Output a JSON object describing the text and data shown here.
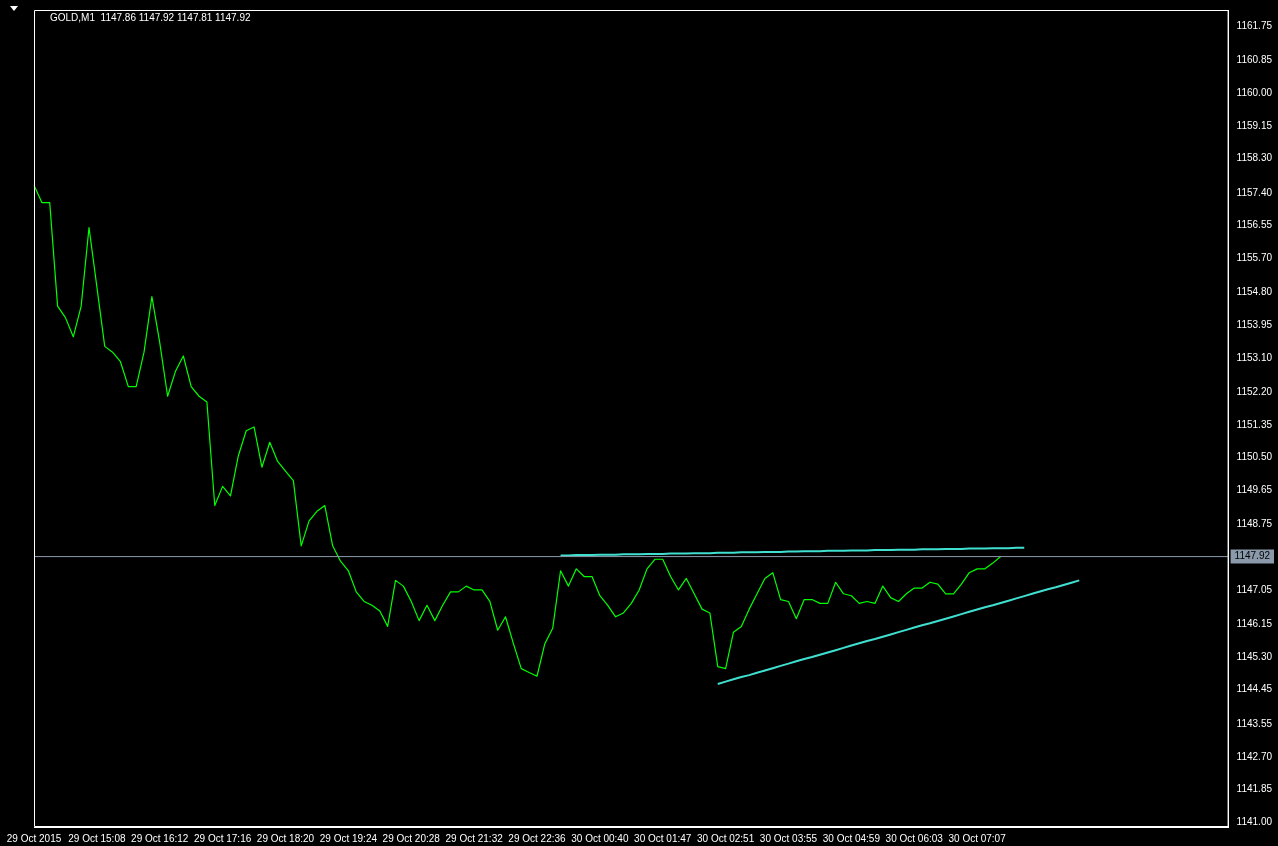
{
  "chart_data": {
    "type": "line",
    "title": "GOLD,M1  1147.86 1147.92 1147.81 1147.92",
    "categories": [
      "29 Oct 2015",
      null,
      null,
      null,
      null,
      null,
      null,
      null,
      "29 Oct 15:08",
      null,
      null,
      null,
      null,
      null,
      null,
      null,
      "29 Oct 16:12",
      null,
      null,
      null,
      null,
      null,
      null,
      null,
      "29 Oct 17:16",
      null,
      null,
      null,
      null,
      null,
      null,
      null,
      "29 Oct 18:20",
      null,
      null,
      null,
      null,
      null,
      null,
      null,
      "29 Oct 19:24",
      null,
      null,
      null,
      null,
      null,
      null,
      null,
      "29 Oct 20:28",
      null,
      null,
      null,
      null,
      null,
      null,
      null,
      "29 Oct 21:32",
      null,
      null,
      null,
      null,
      null,
      null,
      null,
      "29 Oct 22:36",
      null,
      null,
      null,
      null,
      null,
      null,
      null,
      "30 Oct 00:40",
      null,
      null,
      null,
      null,
      null,
      null,
      null,
      "30 Oct 01:47",
      null,
      null,
      null,
      null,
      null,
      null,
      null,
      "30 Oct 02:51",
      null,
      null,
      null,
      null,
      null,
      null,
      null,
      "30 Oct 03:55",
      null,
      null,
      null,
      null,
      null,
      null,
      null,
      "30 Oct 04:59",
      null,
      null,
      null,
      null,
      null,
      null,
      null,
      "30 Oct 06:03",
      null,
      null,
      null,
      null,
      null,
      null,
      null,
      "30 Oct 07:07",
      null,
      null,
      null,
      null,
      null,
      null,
      null,
      null,
      null,
      null,
      null,
      null,
      null,
      null,
      null,
      null,
      null,
      null,
      null,
      null,
      null,
      null,
      null,
      null,
      null,
      null,
      null,
      null,
      null,
      null,
      null,
      null
    ],
    "series": [
      {
        "color": "#00ff00",
        "values": [
          1157.6,
          1157.15,
          1157.15,
          1154.45,
          1154.15,
          1153.65,
          1154.45,
          1156.5,
          1154.95,
          1153.4,
          1153.25,
          1153.0,
          1152.35,
          1152.35,
          1153.25,
          1154.7,
          1153.5,
          1152.1,
          1152.75,
          1153.15,
          1152.35,
          1152.1,
          1151.95,
          1149.25,
          1149.75,
          1149.5,
          1150.55,
          1151.2,
          1151.3,
          1150.25,
          1150.9,
          1150.4,
          1150.15,
          1149.9,
          1148.2,
          1148.85,
          1149.1,
          1149.25,
          1148.2,
          1147.8,
          1147.55,
          1147.0,
          1146.75,
          1146.65,
          1146.5,
          1146.1,
          1147.3,
          1147.15,
          1146.75,
          1146.25,
          1146.65,
          1146.25,
          1146.65,
          1147.0,
          1147.0,
          1147.15,
          1147.05,
          1147.05,
          1146.75,
          1146.0,
          1146.35,
          1145.65,
          1145.0,
          1144.9,
          1144.8,
          1145.65,
          1146.05,
          1147.55,
          1147.15,
          1147.6,
          1147.4,
          1147.4,
          1146.9,
          1146.65,
          1146.35,
          1146.45,
          1146.7,
          1147.05,
          1147.6,
          1147.85,
          1147.85,
          1147.4,
          1147.05,
          1147.35,
          1146.95,
          1146.55,
          1146.45,
          1145.05,
          1145.0,
          1145.95,
          1146.1,
          1146.55,
          1146.95,
          1147.35,
          1147.5,
          1146.8,
          1146.75,
          1146.3,
          1146.8,
          1146.8,
          1146.7,
          1146.7,
          1147.25,
          1146.95,
          1146.9,
          1146.7,
          1146.75,
          1146.7,
          1147.15,
          1146.85,
          1146.75,
          1146.95,
          1147.1,
          1147.1,
          1147.25,
          1147.2,
          1146.95,
          1146.95,
          1147.2,
          1147.5,
          1147.6,
          1147.6,
          1147.75,
          1147.92,
          null,
          null,
          null,
          null,
          null,
          null,
          null,
          null,
          null,
          null,
          null,
          null,
          null,
          null,
          null,
          null,
          null,
          null,
          null,
          null,
          null,
          null,
          null,
          null,
          null,
          null,
          null,
          null,
          null
        ]
      },
      {
        "type": "line",
        "color": "#40e0d0",
        "values": [
          null,
          null,
          null,
          null,
          null,
          null,
          null,
          null,
          null,
          null,
          null,
          null,
          null,
          null,
          null,
          null,
          null,
          null,
          null,
          null,
          null,
          null,
          null,
          null,
          null,
          null,
          null,
          null,
          null,
          null,
          null,
          null,
          null,
          null,
          null,
          null,
          null,
          null,
          null,
          null,
          null,
          null,
          null,
          null,
          null,
          null,
          null,
          null,
          null,
          null,
          null,
          null,
          null,
          null,
          null,
          null,
          null,
          null,
          null,
          null,
          null,
          null,
          null,
          null,
          null,
          null,
          null,
          1147.95,
          1147.95,
          1147.96,
          1147.96,
          1147.96,
          1147.97,
          1147.97,
          1147.97,
          1147.98,
          1147.98,
          1147.98,
          1147.99,
          1147.99,
          1147.99,
          1148.0,
          1148.0,
          1148.0,
          1148.01,
          1148.01,
          1148.01,
          1148.02,
          1148.02,
          1148.02,
          1148.03,
          1148.03,
          1148.03,
          1148.04,
          1148.04,
          1148.04,
          1148.05,
          1148.05,
          1148.06,
          1148.06,
          1148.06,
          1148.07,
          1148.07,
          1148.07,
          1148.08,
          1148.08,
          1148.08,
          1148.09,
          1148.09,
          1148.09,
          1148.1,
          1148.1,
          1148.1,
          1148.11,
          1148.11,
          1148.11,
          1148.12,
          1148.12,
          1148.12,
          1148.13,
          1148.13,
          1148.13,
          1148.14,
          1148.14,
          1148.14,
          1148.15,
          1148.15,
          null,
          null,
          null,
          null,
          null,
          null,
          null,
          null,
          null,
          null,
          null,
          null,
          null,
          null,
          null,
          null,
          null,
          null,
          null,
          null,
          null,
          null,
          null,
          null,
          null,
          null
        ]
      },
      {
        "type": "line",
        "color": "#40e0d0",
        "values": [
          null,
          null,
          null,
          null,
          null,
          null,
          null,
          null,
          null,
          null,
          null,
          null,
          null,
          null,
          null,
          null,
          null,
          null,
          null,
          null,
          null,
          null,
          null,
          null,
          null,
          null,
          null,
          null,
          null,
          null,
          null,
          null,
          null,
          null,
          null,
          null,
          null,
          null,
          null,
          null,
          null,
          null,
          null,
          null,
          null,
          null,
          null,
          null,
          null,
          null,
          null,
          null,
          null,
          null,
          null,
          null,
          null,
          null,
          null,
          null,
          null,
          null,
          null,
          null,
          null,
          null,
          null,
          null,
          null,
          null,
          null,
          null,
          null,
          null,
          null,
          null,
          null,
          null,
          null,
          null,
          null,
          null,
          null,
          null,
          null,
          null,
          null,
          1144.6,
          1144.66,
          1144.72,
          1144.78,
          1144.83,
          1144.89,
          1144.95,
          1145.01,
          1145.07,
          1145.13,
          1145.19,
          1145.25,
          1145.3,
          1145.36,
          1145.42,
          1145.48,
          1145.54,
          1145.6,
          1145.66,
          1145.72,
          1145.77,
          1145.83,
          1145.89,
          1145.95,
          1146.01,
          1146.07,
          1146.13,
          1146.18,
          1146.24,
          1146.3,
          1146.36,
          1146.42,
          1146.48,
          1146.54,
          1146.6,
          1146.65,
          1146.71,
          1146.77,
          1146.83,
          1146.89,
          1146.95,
          1147.01,
          1147.07,
          1147.12,
          1147.18,
          1147.24,
          1147.3,
          null,
          null,
          null,
          null,
          null,
          null,
          null,
          null,
          null,
          null,
          null,
          null,
          null,
          null,
          null,
          null,
          null,
          null,
          null
        ]
      }
    ],
    "ylim": [
      1140.87,
      1162.17
    ],
    "yticks": [
      {
        "value": 1161.75,
        "label": "1161.75"
      },
      {
        "value": 1160.85,
        "label": "1160.85"
      },
      {
        "value": 1160.0,
        "label": "1160.00"
      },
      {
        "value": 1159.15,
        "label": "1159.15"
      },
      {
        "value": 1158.3,
        "label": "1158.30"
      },
      {
        "value": 1157.4,
        "label": "1157.40"
      },
      {
        "value": 1156.55,
        "label": "1156.55"
      },
      {
        "value": 1155.7,
        "label": "1155.70"
      },
      {
        "value": 1154.8,
        "label": "1154.80"
      },
      {
        "value": 1153.95,
        "label": "1153.95"
      },
      {
        "value": 1153.1,
        "label": "1153.10"
      },
      {
        "value": 1152.2,
        "label": "1152.20"
      },
      {
        "value": 1151.35,
        "label": "1151.35"
      },
      {
        "value": 1150.5,
        "label": "1150.50"
      },
      {
        "value": 1149.65,
        "label": "1149.65"
      },
      {
        "value": 1148.75,
        "label": "1148.75"
      },
      {
        "value": 1147.05,
        "label": "1147.05"
      },
      {
        "value": 1146.15,
        "label": "1146.15"
      },
      {
        "value": 1145.3,
        "label": "1145.30"
      },
      {
        "value": 1144.45,
        "label": "1144.45"
      },
      {
        "value": 1143.55,
        "label": "1143.55"
      },
      {
        "value": 1142.7,
        "label": "1142.70"
      },
      {
        "value": 1141.85,
        "label": "1141.85"
      },
      {
        "value": 1141.0,
        "label": "1141.00"
      }
    ],
    "ref_lines": [
      {
        "axis": "y",
        "value": 1147.92,
        "label": "1147.92",
        "color": "#8a9aaa"
      }
    ],
    "grid": false,
    "legend": false,
    "marker": "none",
    "line_style": "solid"
  }
}
